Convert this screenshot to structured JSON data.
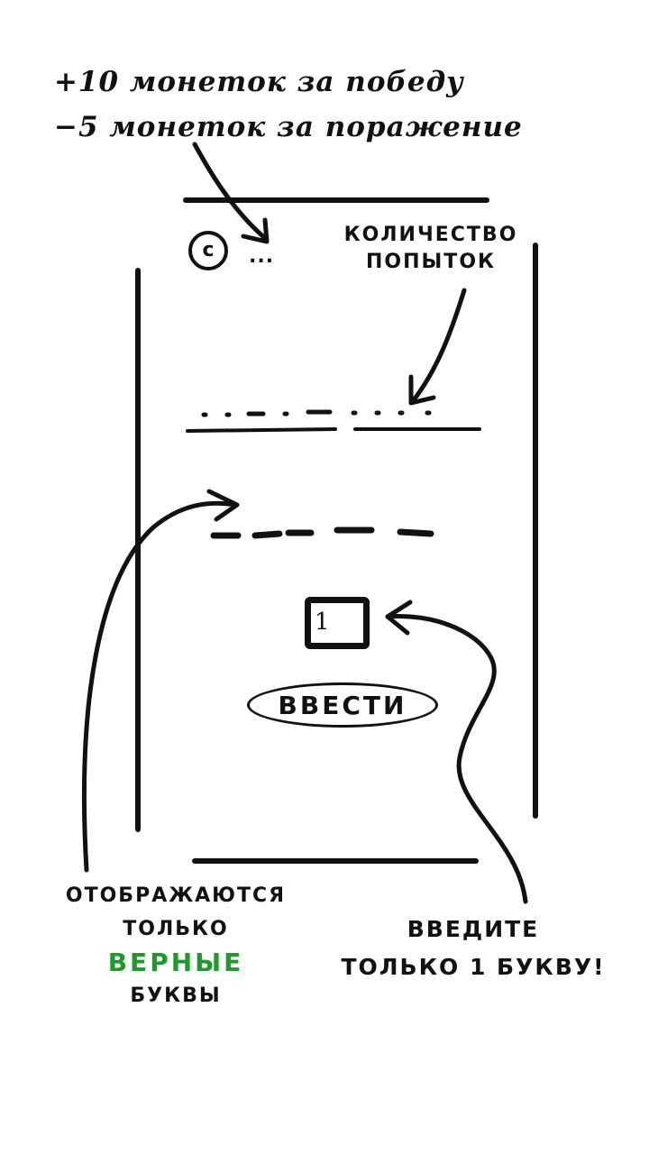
{
  "annotations": {
    "reward_win": "+10 монеток за победу",
    "penalty_loss": "−5 монеток за поражение",
    "attempts_line1": "количество",
    "attempts_line2": "попыток",
    "shown_line1": "отображаются",
    "shown_line2": "только",
    "shown_line3": "верные",
    "shown_line4": "буквы",
    "input_hint_line1": "введите",
    "input_hint_line2": "только 1 букву!"
  },
  "header": {
    "coin_symbol": "c",
    "coin_count": "..."
  },
  "input": {
    "letter_value": "1"
  },
  "buttons": {
    "enter_label": "ВВЕСТИ"
  },
  "colors": {
    "ink": "#111111",
    "highlight": "#1e9a2a",
    "background": "#ffffff"
  }
}
